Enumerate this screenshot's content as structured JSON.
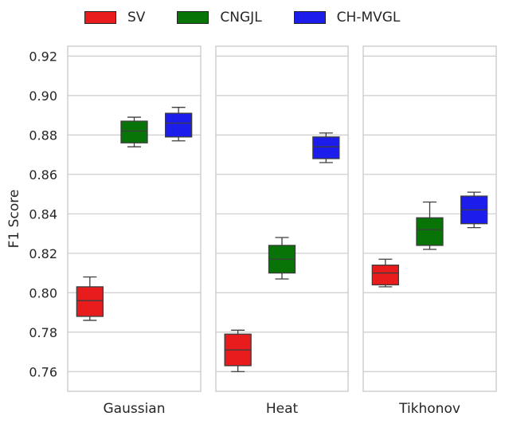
{
  "chart_data": {
    "type": "boxplot",
    "ylabel": "F1 Score",
    "ylim": [
      0.75,
      0.925
    ],
    "yticks": [
      0.76,
      0.78,
      0.8,
      0.82,
      0.84,
      0.86,
      0.88,
      0.9,
      0.92
    ],
    "ytick_labels": [
      "0.76",
      "0.78",
      "0.80",
      "0.82",
      "0.84",
      "0.86",
      "0.88",
      "0.90",
      "0.92"
    ],
    "legend": [
      {
        "name": "SV",
        "color": "#e81c1c"
      },
      {
        "name": "CNGJL",
        "color": "#087408"
      },
      {
        "name": "CH-MVGL",
        "color": "#1c1ceb"
      }
    ],
    "panels": [
      {
        "label": "Gaussian",
        "boxes": [
          {
            "series": "SV",
            "whislo": 0.786,
            "q1": 0.788,
            "med": 0.796,
            "q3": 0.803,
            "whishi": 0.808
          },
          {
            "series": "CNGJL",
            "whislo": 0.874,
            "q1": 0.876,
            "med": 0.882,
            "q3": 0.887,
            "whishi": 0.889
          },
          {
            "series": "CH-MVGL",
            "whislo": 0.877,
            "q1": 0.879,
            "med": 0.886,
            "q3": 0.891,
            "whishi": 0.894
          }
        ]
      },
      {
        "label": "Heat",
        "boxes": [
          {
            "series": "SV",
            "whislo": 0.76,
            "q1": 0.763,
            "med": 0.771,
            "q3": 0.779,
            "whishi": 0.781
          },
          {
            "series": "CNGJL",
            "whislo": 0.807,
            "q1": 0.81,
            "med": 0.817,
            "q3": 0.824,
            "whishi": 0.828
          },
          {
            "series": "CH-MVGL",
            "whislo": 0.866,
            "q1": 0.868,
            "med": 0.874,
            "q3": 0.879,
            "whishi": 0.881
          }
        ]
      },
      {
        "label": "Tikhonov",
        "boxes": [
          {
            "series": "SV",
            "whislo": 0.803,
            "q1": 0.804,
            "med": 0.81,
            "q3": 0.814,
            "whishi": 0.817
          },
          {
            "series": "CNGJL",
            "whislo": 0.822,
            "q1": 0.824,
            "med": 0.832,
            "q3": 0.838,
            "whishi": 0.846
          },
          {
            "series": "CH-MVGL",
            "whislo": 0.833,
            "q1": 0.835,
            "med": 0.842,
            "q3": 0.849,
            "whishi": 0.851
          }
        ]
      }
    ]
  }
}
